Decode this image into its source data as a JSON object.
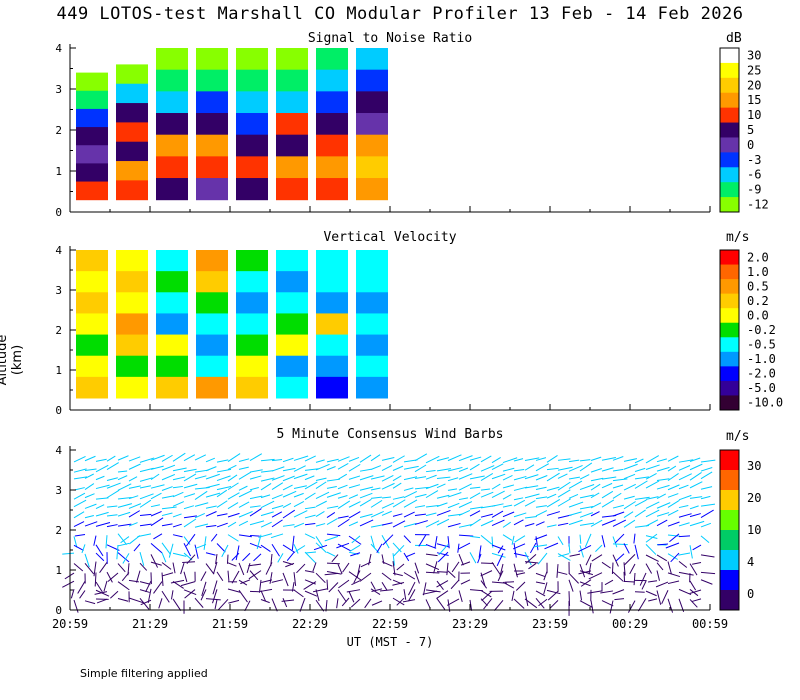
{
  "title": "449 LOTOS-test Marshall CO Modular Profiler 13 Feb - 14 Feb 2026",
  "ylabel": "Altitude (km)",
  "xlabel": "UT  (MST - 7)",
  "footnote": "Simple filtering applied",
  "chart_data": [
    {
      "type": "heatmap",
      "title": "Signal to Noise Ratio",
      "unit": "dB",
      "x_ticks": [
        "20:59",
        "21:29",
        "21:59",
        "22:29",
        "22:59",
        "23:29",
        "23:59",
        "00:29",
        "00:59"
      ],
      "y_ticks": [
        0,
        1,
        2,
        3,
        4
      ],
      "ylim": [
        0,
        4
      ],
      "colorbar": {
        "labels": [
          "30",
          "25",
          "20",
          "15",
          "10",
          "5",
          "0",
          "-3",
          "-6",
          "-9",
          "-12"
        ],
        "colors": [
          "#ffffff",
          "#ffff00",
          "#ffcc00",
          "#ff9900",
          "#ff3300",
          "#330066",
          "#6633aa",
          "#0033ff",
          "#00ccff",
          "#00ee66",
          "#88ff00"
        ]
      },
      "segments": [
        {
          "start": "20:59",
          "end": "21:14",
          "top_km": 3.4,
          "profile": [
            "#88ff00",
            "#00ee66",
            "#0033ff",
            "#330066",
            "#6633aa",
            "#330066",
            "#ff3300"
          ]
        },
        {
          "start": "21:14",
          "end": "21:29",
          "top_km": 3.6,
          "profile": [
            "#88ff00",
            "#00ccff",
            "#330066",
            "#ff3300",
            "#330066",
            "#ff9900",
            "#ff3300"
          ]
        },
        {
          "start": "21:29",
          "end": "21:44",
          "top_km": 4.0,
          "profile": [
            "#88ff00",
            "#00ee66",
            "#00ccff",
            "#330066",
            "#ff9900",
            "#ff3300",
            "#330066"
          ]
        },
        {
          "start": "21:44",
          "end": "21:59",
          "top_km": 4.0,
          "profile": [
            "#88ff00",
            "#00ee66",
            "#0033ff",
            "#330066",
            "#ff9900",
            "#ff3300",
            "#6633aa"
          ]
        },
        {
          "start": "21:59",
          "end": "22:14",
          "top_km": 4.0,
          "profile": [
            "#88ff00",
            "#00ee66",
            "#00ccff",
            "#0033ff",
            "#330066",
            "#ff3300",
            "#330066"
          ]
        },
        {
          "start": "22:14",
          "end": "22:29",
          "top_km": 4.0,
          "profile": [
            "#88ff00",
            "#00ee66",
            "#00ccff",
            "#ff3300",
            "#330066",
            "#ff9900",
            "#ff3300"
          ]
        },
        {
          "start": "22:29",
          "end": "22:44",
          "top_km": 4.0,
          "profile": [
            "#00ee66",
            "#00ccff",
            "#0033ff",
            "#330066",
            "#ff3300",
            "#ff9900",
            "#ff3300"
          ]
        },
        {
          "start": "22:44",
          "end": "22:59",
          "top_km": 4.0,
          "profile": [
            "#00ccff",
            "#0033ff",
            "#330066",
            "#6633aa",
            "#ff9900",
            "#ffcc00",
            "#ff9900"
          ]
        }
      ]
    },
    {
      "type": "heatmap",
      "title": "Vertical Velocity",
      "unit": "m/s",
      "x_ticks": [
        "20:59",
        "21:29",
        "21:59",
        "22:29",
        "22:59",
        "23:29",
        "23:59",
        "00:29",
        "00:59"
      ],
      "y_ticks": [
        0,
        1,
        2,
        3,
        4
      ],
      "ylim": [
        0,
        4
      ],
      "colorbar": {
        "labels": [
          "2.0",
          "1.0",
          "0.5",
          "0.2",
          "0.0",
          "-0.2",
          "-0.5",
          "-1.0",
          "-2.0",
          "-5.0",
          "-10.0"
        ],
        "colors": [
          "#ff0000",
          "#ff6600",
          "#ff9900",
          "#ffcc00",
          "#ffff00",
          "#00dd00",
          "#00ffff",
          "#0099ff",
          "#0000ff",
          "#330099",
          "#330033"
        ]
      },
      "segments": [
        {
          "start": "20:59",
          "end": "21:14",
          "top_km": 4.0,
          "profile": [
            "#ffcc00",
            "#ffff00",
            "#ffcc00",
            "#ffff00",
            "#00dd00",
            "#ffff00",
            "#ffcc00"
          ]
        },
        {
          "start": "21:14",
          "end": "21:29",
          "top_km": 4.0,
          "profile": [
            "#ffff00",
            "#ffcc00",
            "#ffff00",
            "#ff9900",
            "#ffcc00",
            "#00dd00",
            "#ffff00"
          ]
        },
        {
          "start": "21:29",
          "end": "21:44",
          "top_km": 4.0,
          "profile": [
            "#00ffff",
            "#00dd00",
            "#00ffff",
            "#0099ff",
            "#ffff00",
            "#00dd00",
            "#ffcc00"
          ]
        },
        {
          "start": "21:44",
          "end": "21:59",
          "top_km": 4.0,
          "profile": [
            "#ff9900",
            "#ffcc00",
            "#00dd00",
            "#00ffff",
            "#0099ff",
            "#00ffff",
            "#ff9900"
          ]
        },
        {
          "start": "21:59",
          "end": "22:14",
          "top_km": 4.0,
          "profile": [
            "#00dd00",
            "#00ffff",
            "#0099ff",
            "#00ffff",
            "#00dd00",
            "#ffff00",
            "#ffcc00"
          ]
        },
        {
          "start": "22:14",
          "end": "22:29",
          "top_km": 4.0,
          "profile": [
            "#00ffff",
            "#0099ff",
            "#00ffff",
            "#00dd00",
            "#ffff00",
            "#0099ff",
            "#00ffff"
          ]
        },
        {
          "start": "22:29",
          "end": "22:44",
          "top_km": 4.0,
          "profile": [
            "#00ffff",
            "#00ffff",
            "#0099ff",
            "#ffcc00",
            "#00ffff",
            "#0099ff",
            "#0000ff"
          ]
        },
        {
          "start": "22:44",
          "end": "22:59",
          "top_km": 4.0,
          "profile": [
            "#00ffff",
            "#00ffff",
            "#0099ff",
            "#00ffff",
            "#0099ff",
            "#00ffff",
            "#0099ff"
          ]
        }
      ]
    },
    {
      "type": "scatter",
      "title": "5 Minute Consensus Wind Barbs",
      "unit": "m/s",
      "x_ticks": [
        "20:59",
        "21:29",
        "21:59",
        "22:29",
        "22:59",
        "23:29",
        "23:59",
        "00:29",
        "00:59"
      ],
      "y_ticks": [
        0,
        1,
        2,
        3,
        4
      ],
      "ylim": [
        0,
        4
      ],
      "colorbar": {
        "labels": [
          "30",
          "20",
          "10",
          "4",
          "0"
        ],
        "colors": [
          "#ff0000",
          "#ff6600",
          "#ffcc00",
          "#66ff00",
          "#00cc66",
          "#00ccff",
          "#0000ff",
          "#330066"
        ]
      }
    }
  ]
}
